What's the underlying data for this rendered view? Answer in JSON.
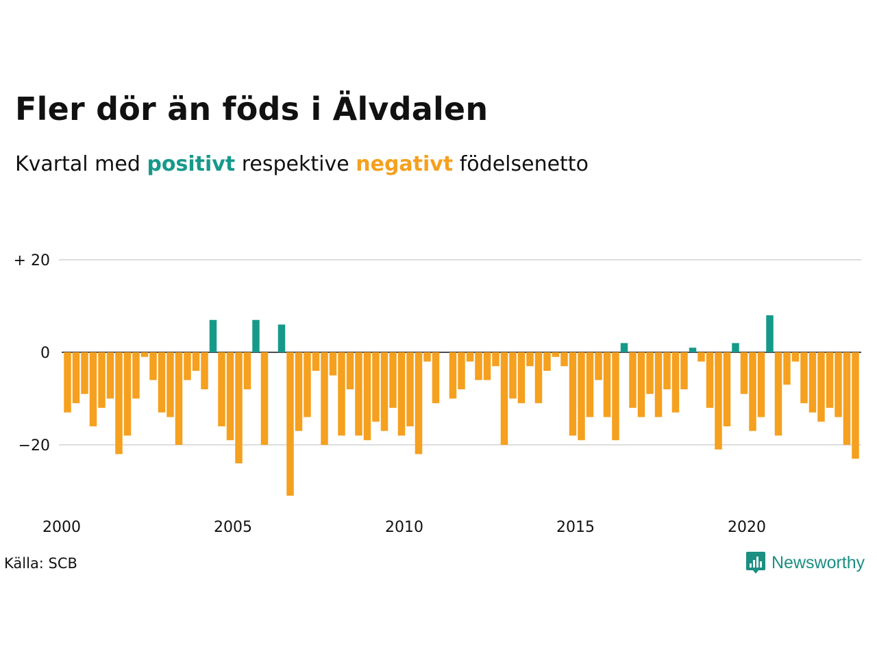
{
  "header": {
    "title": "Fler dör än föds i Älvdalen",
    "subtitle_before": "Kvartal med",
    "subtitle_positive": "positivt",
    "subtitle_middle": "respektive",
    "subtitle_negative": "negativt",
    "subtitle_after": "födelsenetto"
  },
  "footer": {
    "source": "Källa: SCB",
    "brand": "Newsworthy"
  },
  "colors": {
    "positive": "#17998a",
    "negative": "#f5a01f",
    "grid": "#dddddd",
    "baseline": "#111111",
    "brand": "#1a8f82"
  },
  "icons": {
    "logo": "newsworthy-bar-chart-icon"
  },
  "chart_data": {
    "type": "bar",
    "title": "Fler dör än föds i Älvdalen",
    "subtitle": "Kvartal med positivt respektive negativt födelsenetto",
    "xlabel": "",
    "ylabel": "",
    "x_start": "2000 Q1",
    "x_end": "2023 Q2",
    "x_ticks": [
      2000,
      2005,
      2010,
      2015,
      2020
    ],
    "y_ticks": [
      {
        "value": 20,
        "label": "+ 20"
      },
      {
        "value": 0,
        "label": "0"
      },
      {
        "value": -20,
        "label": "−20"
      }
    ],
    "ylim": [
      -31,
      20
    ],
    "grid": true,
    "categories": [
      "2000 Q1",
      "2000 Q2",
      "2000 Q3",
      "2000 Q4",
      "2001 Q1",
      "2001 Q2",
      "2001 Q3",
      "2001 Q4",
      "2002 Q1",
      "2002 Q2",
      "2002 Q3",
      "2002 Q4",
      "2003 Q1",
      "2003 Q2",
      "2003 Q3",
      "2003 Q4",
      "2004 Q1",
      "2004 Q2",
      "2004 Q3",
      "2004 Q4",
      "2005 Q1",
      "2005 Q2",
      "2005 Q3",
      "2005 Q4",
      "2006 Q1",
      "2006 Q2",
      "2006 Q3",
      "2006 Q4",
      "2007 Q1",
      "2007 Q2",
      "2007 Q3",
      "2007 Q4",
      "2008 Q1",
      "2008 Q2",
      "2008 Q3",
      "2008 Q4",
      "2009 Q1",
      "2009 Q2",
      "2009 Q3",
      "2009 Q4",
      "2010 Q1",
      "2010 Q2",
      "2010 Q3",
      "2010 Q4",
      "2011 Q1",
      "2011 Q2",
      "2011 Q3",
      "2011 Q4",
      "2012 Q1",
      "2012 Q2",
      "2012 Q3",
      "2012 Q4",
      "2013 Q1",
      "2013 Q2",
      "2013 Q3",
      "2013 Q4",
      "2014 Q1",
      "2014 Q2",
      "2014 Q3",
      "2014 Q4",
      "2015 Q1",
      "2015 Q2",
      "2015 Q3",
      "2015 Q4",
      "2016 Q1",
      "2016 Q2",
      "2016 Q3",
      "2016 Q4",
      "2017 Q1",
      "2017 Q2",
      "2017 Q3",
      "2017 Q4",
      "2018 Q1",
      "2018 Q2",
      "2018 Q3",
      "2018 Q4",
      "2019 Q1",
      "2019 Q2",
      "2019 Q3",
      "2019 Q4",
      "2020 Q1",
      "2020 Q2",
      "2020 Q3",
      "2020 Q4",
      "2021 Q1",
      "2021 Q2",
      "2021 Q3",
      "2021 Q4",
      "2022 Q1",
      "2022 Q2",
      "2022 Q3",
      "2022 Q4",
      "2023 Q1",
      "2023 Q2"
    ],
    "values": [
      -13,
      -11,
      -9,
      -16,
      -12,
      -10,
      -22,
      -18,
      -10,
      -1,
      -6,
      -13,
      -14,
      -20,
      -6,
      -4,
      -8,
      7,
      -16,
      -19,
      -24,
      -8,
      7,
      -20,
      0,
      6,
      -31,
      -17,
      -14,
      -4,
      -20,
      -5,
      -18,
      -8,
      -18,
      -19,
      -15,
      -17,
      -12,
      -18,
      -16,
      -22,
      -2,
      -11,
      0,
      -10,
      -8,
      -2,
      -6,
      -6,
      -3,
      -20,
      -10,
      -11,
      -3,
      -11,
      -4,
      -1,
      -3,
      -18,
      -19,
      -14,
      -6,
      -14,
      -19,
      2,
      -12,
      -14,
      -9,
      -14,
      -8,
      -13,
      -8,
      1,
      -2,
      -12,
      -21,
      -16,
      2,
      -9,
      -17,
      -14,
      8,
      -18,
      -7,
      -2,
      -11,
      -13,
      -15,
      -12,
      -14,
      -20,
      -23,
      0
    ]
  }
}
